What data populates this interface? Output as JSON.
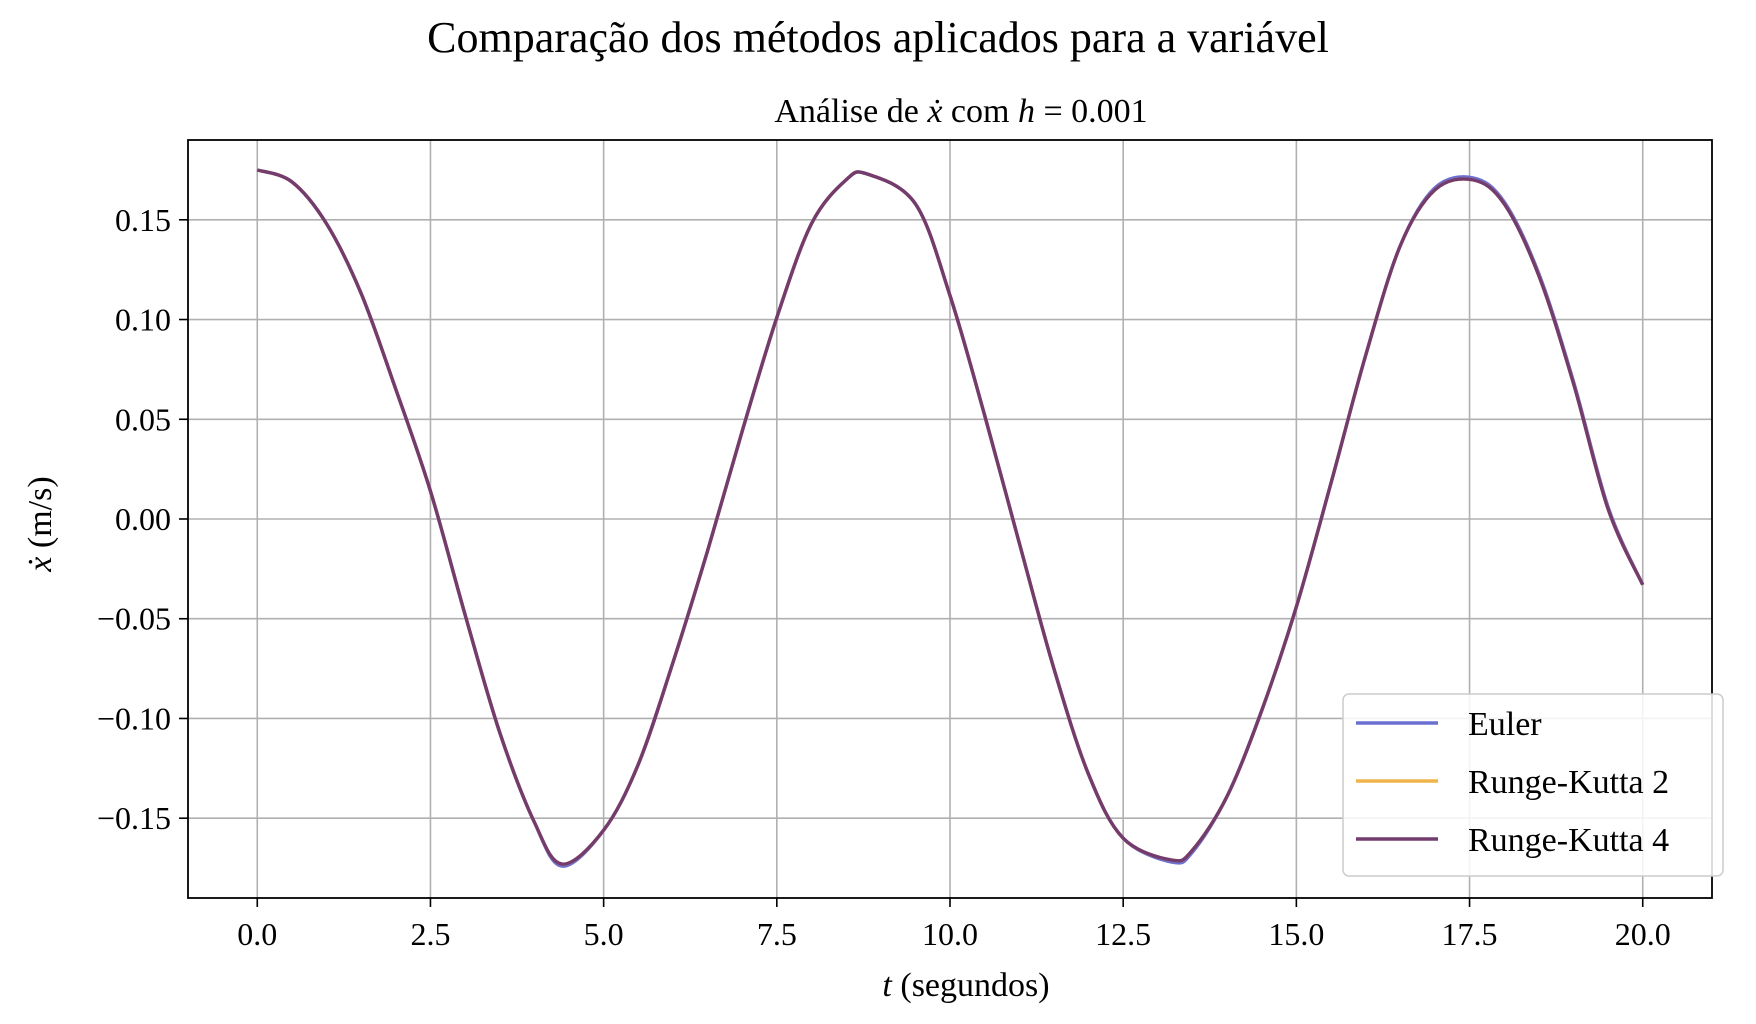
{
  "suptitle": "Comparação dos métodos aplicados para a variável",
  "chart_data": {
    "type": "line",
    "title_parts": {
      "prefix": "Análise de ",
      "var": "ẋ",
      "mid": " com ",
      "h": "h",
      "eq": " = 0.001"
    },
    "xlabel_parts": {
      "var": "t",
      "rest": " (segundos)"
    },
    "ylabel_parts": {
      "var": "ẋ",
      "rest": " (m/s)"
    },
    "xlim": [
      -1.0,
      21.0
    ],
    "ylim": [
      -0.19,
      0.19
    ],
    "xticks": [
      0.0,
      2.5,
      5.0,
      7.5,
      10.0,
      12.5,
      15.0,
      17.5,
      20.0
    ],
    "xtick_labels": [
      "0.0",
      "2.5",
      "5.0",
      "7.5",
      "10.0",
      "12.5",
      "15.0",
      "17.5",
      "20.0"
    ],
    "yticks": [
      0.15,
      0.1,
      0.05,
      0.0,
      -0.05,
      -0.1,
      -0.15
    ],
    "ytick_labels": [
      "0.15",
      "0.10",
      "0.05",
      "0.00",
      "−0.05",
      "−0.10",
      "−0.15"
    ],
    "grid": true,
    "legend_position": "lower-right",
    "series": [
      {
        "name": "Euler",
        "color": "#6b70d0",
        "x": [
          0.0,
          0.5,
          1.0,
          1.5,
          2.0,
          2.5,
          3.0,
          3.5,
          4.0,
          4.4,
          5.0,
          5.5,
          6.0,
          6.5,
          7.0,
          7.5,
          8.0,
          8.5,
          8.8,
          9.5,
          10.0,
          10.5,
          11.0,
          11.5,
          12.0,
          12.5,
          13.2,
          13.5,
          14.0,
          14.5,
          15.0,
          15.5,
          16.0,
          16.5,
          17.0,
          17.55,
          18.0,
          18.5,
          19.0,
          19.5,
          20.0
        ],
        "y": [
          0.175,
          0.169,
          0.148,
          0.113,
          0.065,
          0.014,
          -0.048,
          -0.107,
          -0.152,
          -0.174,
          -0.156,
          -0.123,
          -0.072,
          -0.016,
          0.044,
          0.101,
          0.148,
          0.17,
          0.173,
          0.158,
          0.112,
          0.052,
          -0.012,
          -0.075,
          -0.128,
          -0.16,
          -0.172,
          -0.167,
          -0.139,
          -0.096,
          -0.044,
          0.018,
          0.082,
          0.137,
          0.166,
          0.171,
          0.159,
          0.123,
          0.069,
          0.006,
          -0.033
        ]
      },
      {
        "name": "Runge-Kutta 2",
        "color": "#f0b44a",
        "x": [
          0.0,
          0.5,
          1.0,
          1.5,
          2.0,
          2.5,
          3.0,
          3.5,
          4.0,
          4.4,
          5.0,
          5.5,
          6.0,
          6.5,
          7.0,
          7.5,
          8.0,
          8.5,
          8.8,
          9.5,
          10.0,
          10.5,
          11.0,
          11.5,
          12.0,
          12.5,
          13.2,
          13.5,
          14.0,
          14.5,
          15.0,
          15.5,
          16.0,
          16.5,
          17.0,
          17.55,
          18.0,
          18.5,
          19.0,
          19.5,
          20.0
        ],
        "y": [
          0.175,
          0.169,
          0.148,
          0.113,
          0.065,
          0.014,
          -0.048,
          -0.107,
          -0.152,
          -0.173,
          -0.156,
          -0.123,
          -0.072,
          -0.016,
          0.044,
          0.101,
          0.148,
          0.17,
          0.173,
          0.158,
          0.112,
          0.052,
          -0.012,
          -0.075,
          -0.128,
          -0.16,
          -0.171,
          -0.166,
          -0.139,
          -0.096,
          -0.044,
          0.018,
          0.082,
          0.137,
          0.165,
          0.17,
          0.158,
          0.122,
          0.068,
          0.005,
          -0.033
        ]
      },
      {
        "name": "Runge-Kutta 4",
        "color": "#733b6e",
        "x": [
          0.0,
          0.5,
          1.0,
          1.5,
          2.0,
          2.5,
          3.0,
          3.5,
          4.0,
          4.4,
          5.0,
          5.5,
          6.0,
          6.5,
          7.0,
          7.5,
          8.0,
          8.5,
          8.8,
          9.5,
          10.0,
          10.5,
          11.0,
          11.5,
          12.0,
          12.5,
          13.2,
          13.5,
          14.0,
          14.5,
          15.0,
          15.5,
          16.0,
          16.5,
          17.0,
          17.55,
          18.0,
          18.5,
          19.0,
          19.5,
          20.0
        ],
        "y": [
          0.175,
          0.169,
          0.148,
          0.113,
          0.065,
          0.014,
          -0.048,
          -0.107,
          -0.152,
          -0.173,
          -0.156,
          -0.123,
          -0.072,
          -0.016,
          0.044,
          0.101,
          0.148,
          0.17,
          0.173,
          0.158,
          0.112,
          0.052,
          -0.012,
          -0.075,
          -0.128,
          -0.16,
          -0.171,
          -0.166,
          -0.139,
          -0.096,
          -0.044,
          0.018,
          0.082,
          0.137,
          0.165,
          0.17,
          0.158,
          0.122,
          0.068,
          0.005,
          -0.033
        ]
      }
    ]
  }
}
